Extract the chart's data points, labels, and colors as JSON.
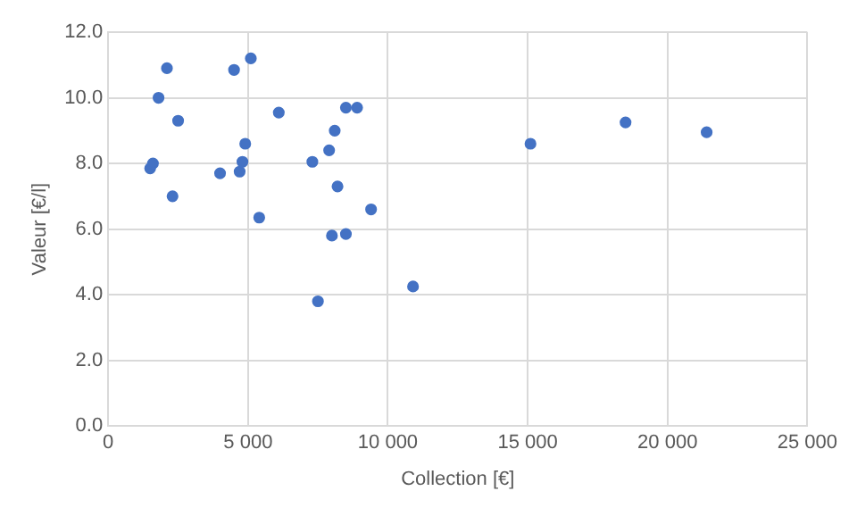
{
  "chart_data": {
    "type": "scatter",
    "xlabel": "Collection [€]",
    "ylabel": "Valeur [€/l]",
    "x": [
      1500,
      1600,
      1800,
      2100,
      2300,
      2500,
      4000,
      4500,
      4700,
      4800,
      4900,
      5100,
      5400,
      6100,
      7300,
      7500,
      7900,
      8100,
      8000,
      8200,
      8500,
      8500,
      8900,
      9400,
      10900,
      15100,
      18500,
      21400
    ],
    "values": [
      7.85,
      8.0,
      10.0,
      10.9,
      7.0,
      9.3,
      7.7,
      10.85,
      7.75,
      8.05,
      8.6,
      11.2,
      6.35,
      9.55,
      8.05,
      3.8,
      8.4,
      9.0,
      5.8,
      7.3,
      9.7,
      5.85,
      9.7,
      6.6,
      4.25,
      8.6,
      9.25,
      8.95
    ],
    "color": "#4472c4",
    "marker": "circle",
    "grid": true,
    "legend": false,
    "xlim": [
      0,
      25000
    ],
    "xticks": [
      {
        "value": 0,
        "label": "0"
      },
      {
        "value": 5000,
        "label": "5 000"
      },
      {
        "value": 10000,
        "label": "10 000"
      },
      {
        "value": 15000,
        "label": "15 000"
      },
      {
        "value": 20000,
        "label": "20 000"
      },
      {
        "value": 25000,
        "label": "25 000"
      }
    ],
    "ylim": [
      0,
      12
    ],
    "yticks": [
      {
        "value": 0,
        "label": "0.0"
      },
      {
        "value": 2,
        "label": "2.0"
      },
      {
        "value": 4,
        "label": "4.0"
      },
      {
        "value": 6,
        "label": "6.0"
      },
      {
        "value": 8,
        "label": "8.0"
      },
      {
        "value": 10,
        "label": "10.0"
      },
      {
        "value": 12,
        "label": "12.0"
      }
    ]
  }
}
